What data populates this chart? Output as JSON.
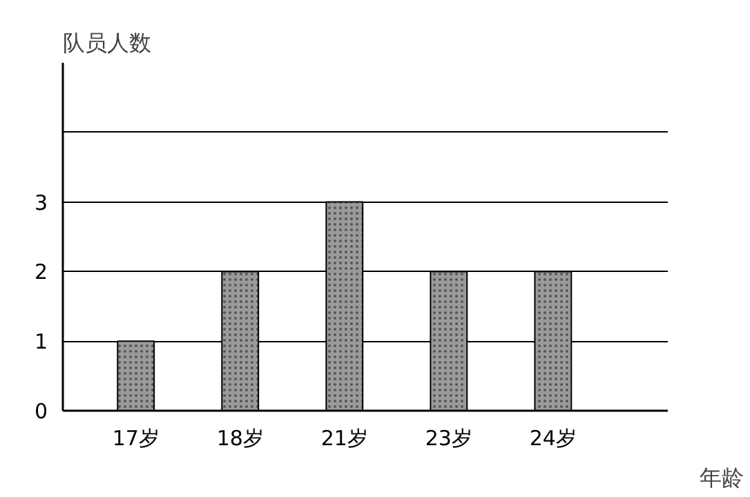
{
  "chart_data": {
    "type": "bar",
    "xlabel": "年龄",
    "ylabel": "队员人数",
    "categories": [
      "17岁",
      "18岁",
      "21岁",
      "23岁",
      "24岁"
    ],
    "values": [
      1,
      2,
      3,
      2,
      2
    ],
    "color": "#9a9a9a",
    "ylim": [
      0,
      5
    ],
    "yticks": [
      0,
      1,
      2,
      3,
      {
        "value": 4,
        "label": null
      }
    ],
    "grid": "y"
  }
}
